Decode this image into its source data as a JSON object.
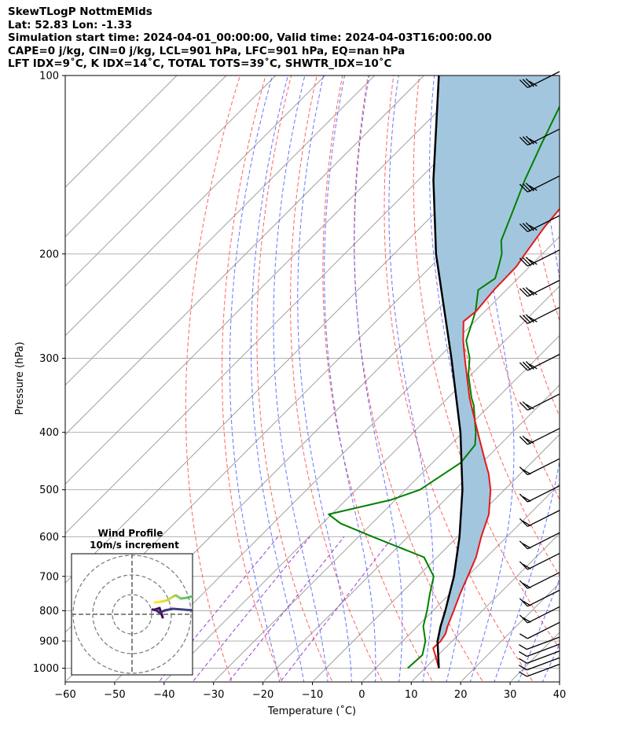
{
  "chart_data": {
    "type": "skewt",
    "title_lines": [
      "SkewTLogP NottmEMids",
      "Lat: 52.83   Lon: -1.33",
      "Simulation start time: 2024-04-01_00:00:00, Valid time: 2024-04-03T16:00:00.00",
      "CAPE=0 j/kg, CIN=0 j/kg, LCL=901 hPa, LFC=901 hPa, EQ=nan hPa",
      "LFT IDX=9˚C, K IDX=14˚C, TOTAL TOTS=39˚C, SHWTR_IDX=10˚C"
    ],
    "xlabel": "Temperature (˚C)",
    "ylabel": "Pressure (hPa)",
    "xlim": [
      -60,
      40
    ],
    "ylim": [
      1050,
      100
    ],
    "x_ticks": [
      -60,
      -50,
      -40,
      -30,
      -20,
      -10,
      0,
      10,
      20,
      30,
      40
    ],
    "x_tick_labels": [
      "−60",
      "−50",
      "−40",
      "−30",
      "−20",
      "−10",
      "0",
      "10",
      "20",
      "30",
      "40"
    ],
    "y_ticks": [
      1000,
      900,
      800,
      700,
      600,
      500,
      400,
      300,
      200,
      100
    ],
    "y_tick_labels": [
      "1000",
      "900",
      "800",
      "700",
      "600",
      "500",
      "400",
      "300",
      "200",
      "100"
    ],
    "grid": true,
    "colors": {
      "temperature": "#e41a1c",
      "dewpoint": "#008000",
      "parcel": "#000000",
      "cape_fill": "#a3c6df",
      "dry_adiabats": "#ff5050",
      "moist_adiabats": "#4a5cff",
      "mixing_ratio": "#9a3fd0",
      "isotherms": "#a0a0a0"
    },
    "series": [
      {
        "kind": "temperature",
        "p": [
          1000,
          950,
          925,
          900,
          875,
          850,
          800,
          750,
          700,
          650,
          600,
          550,
          500,
          470,
          450,
          400,
          350,
          300,
          280,
          260,
          250,
          230,
          210,
          200,
          180,
          160,
          140,
          120,
          110,
          100
        ],
        "t": [
          12.8,
          9.4,
          7.6,
          7.7,
          7.2,
          6.1,
          4.2,
          2.1,
          0.1,
          -2.1,
          -5.2,
          -8.2,
          -12.8,
          -16.4,
          -19.3,
          -27.0,
          -35.6,
          -44.6,
          -48.5,
          -52.3,
          -51.8,
          -52.5,
          -52.7,
          -53.5,
          -55.0,
          -56.0,
          -57.0,
          -59.0,
          -59.8,
          -60.0
        ]
      },
      {
        "kind": "dewpoint",
        "p": [
          1000,
          950,
          900,
          850,
          800,
          750,
          700,
          650,
          600,
          570,
          550,
          520,
          500,
          450,
          420,
          400,
          360,
          350,
          320,
          300,
          280,
          260,
          250,
          230,
          220,
          210,
          200,
          190,
          170,
          150,
          130,
          100
        ],
        "t": [
          6.5,
          6.8,
          4.6,
          1.2,
          -1.2,
          -4.0,
          -6.8,
          -12.6,
          -27.2,
          -36.3,
          -40.6,
          -30.9,
          -27.1,
          -24.3,
          -25.0,
          -27.4,
          -33.3,
          -35.2,
          -40.5,
          -43.6,
          -47.9,
          -50.5,
          -51.9,
          -55.7,
          -54.6,
          -56.3,
          -58.2,
          -61.0,
          -64.5,
          -68.5,
          -72.5,
          -79.5
        ]
      },
      {
        "kind": "parcel",
        "p": [
          1000,
          950,
          901,
          850,
          800,
          700,
          600,
          500,
          400,
          300,
          200,
          150,
          100
        ],
        "t": [
          12.8,
          10.0,
          7.1,
          4.7,
          2.5,
          -2.7,
          -9.6,
          -18.5,
          -30.5,
          -47.3,
          -71.5,
          -87.0,
          -107.0
        ]
      }
    ],
    "wind_barb_pressures": [
      1000,
      975,
      950,
      925,
      900,
      850,
      800,
      750,
      700,
      650,
      600,
      550,
      500,
      450,
      400,
      350,
      300,
      250,
      225,
      200,
      175,
      150,
      125,
      100
    ],
    "inset": {
      "title": "Wind Profile",
      "subtitle": "10m/s increment"
    }
  }
}
